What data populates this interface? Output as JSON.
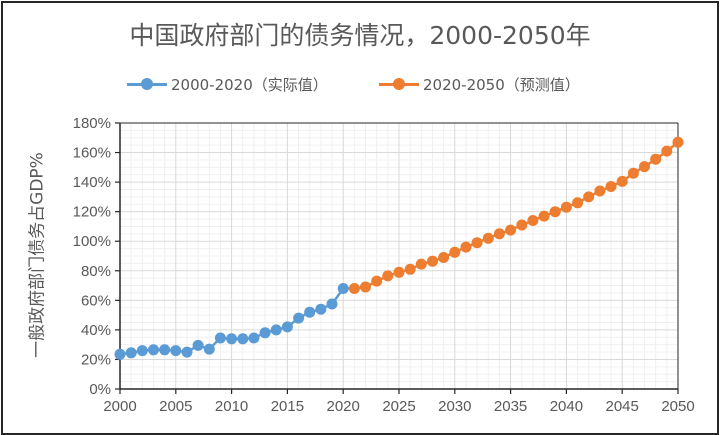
{
  "chart_data": {
    "type": "line",
    "title": "中国政府部门的债务情况，2000-2050年",
    "xlabel": "",
    "ylabel": "一般政府部门债务占GDP%",
    "xlim": [
      2000,
      2050
    ],
    "ylim": [
      0,
      180
    ],
    "x_ticks": [
      "2000",
      "2005",
      "2010",
      "2015",
      "2020",
      "2025",
      "2030",
      "2035",
      "2040",
      "2045",
      "2050"
    ],
    "y_ticks": [
      "0%",
      "20%",
      "40%",
      "60%",
      "80%",
      "100%",
      "120%",
      "140%",
      "160%",
      "180%"
    ],
    "grid": true,
    "legend_position": "top",
    "series": [
      {
        "name": "2000-2020（实际值）",
        "color": "#5b9bd5",
        "x": [
          2000,
          2001,
          2002,
          2003,
          2004,
          2005,
          2006,
          2007,
          2008,
          2009,
          2010,
          2011,
          2012,
          2013,
          2014,
          2015,
          2016,
          2017,
          2018,
          2019,
          2020
        ],
        "values": [
          23.5,
          24.5,
          26,
          26.5,
          26.5,
          26,
          25,
          29.5,
          27,
          34.5,
          34,
          34,
          34.5,
          38,
          40,
          42,
          48,
          52,
          54,
          57.5,
          68
        ]
      },
      {
        "name": "2020-2050（预测值）",
        "color": "#ed7d31",
        "x": [
          2021,
          2022,
          2023,
          2024,
          2025,
          2026,
          2027,
          2028,
          2029,
          2030,
          2031,
          2032,
          2033,
          2034,
          2035,
          2036,
          2037,
          2038,
          2039,
          2040,
          2041,
          2042,
          2043,
          2044,
          2045,
          2046,
          2047,
          2048,
          2049,
          2050
        ],
        "values": [
          68,
          69,
          73,
          76.5,
          79,
          81,
          84.5,
          86.5,
          89,
          92.5,
          96,
          99,
          102,
          105,
          107.5,
          111,
          114,
          117,
          120,
          123,
          126,
          130,
          134,
          137,
          140.5,
          146,
          150.5,
          155.5,
          161,
          167
        ]
      }
    ]
  }
}
